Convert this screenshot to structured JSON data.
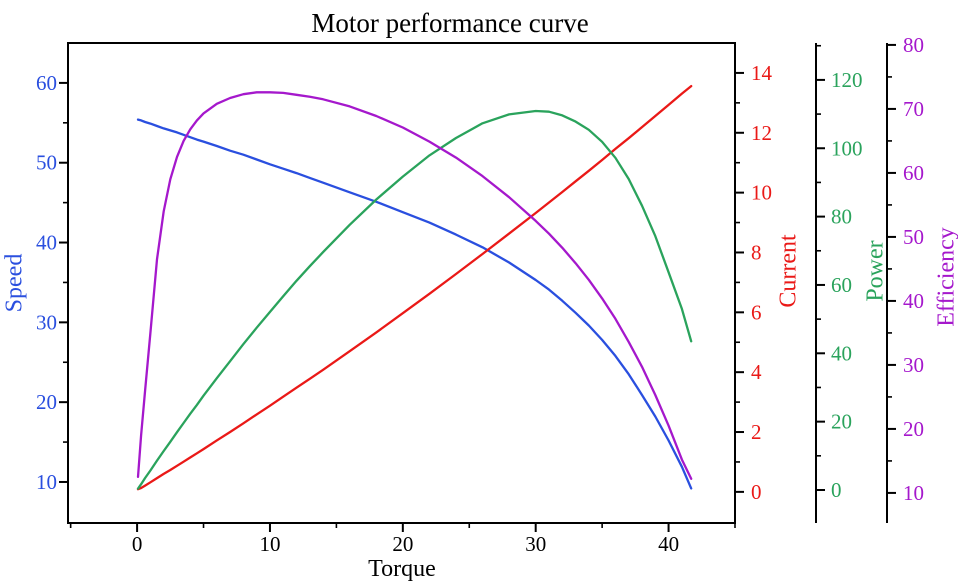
{
  "title": "Motor performance curve",
  "chart_data": {
    "type": "line",
    "title": "Motor performance curve",
    "xlabel": "Torque",
    "xlim": [
      -5.2,
      45.0
    ],
    "x_ticks": [
      0,
      10,
      20,
      30,
      40
    ],
    "x_minor_step": 5,
    "grid": false,
    "legend_position": "none",
    "x": [
      0.07,
      0.3,
      0.6,
      1,
      1.5,
      2,
      2.5,
      3,
      3.5,
      4,
      4.5,
      5,
      6,
      7,
      8,
      9,
      10,
      11,
      12,
      13,
      14,
      16,
      18,
      20,
      22,
      24,
      26,
      28,
      30,
      31,
      32,
      33,
      34,
      35,
      36,
      37,
      38,
      39,
      40,
      41,
      41.7
    ],
    "series": [
      {
        "name": "Speed",
        "axis": "speed",
        "values": [
          55.4,
          55.3,
          55.1,
          54.9,
          54.6,
          54.3,
          54.05,
          53.8,
          53.5,
          53.2,
          52.9,
          52.65,
          52.1,
          51.5,
          51.0,
          50.4,
          49.8,
          49.25,
          48.7,
          48.1,
          47.5,
          46.3,
          45.1,
          43.8,
          42.5,
          41.0,
          39.4,
          37.5,
          35.3,
          34.1,
          32.7,
          31.2,
          29.6,
          27.8,
          25.8,
          23.5,
          20.9,
          18.2,
          15.2,
          11.9,
          9.2
        ]
      },
      {
        "name": "Current",
        "axis": "current",
        "values": [
          0.09,
          0.13,
          0.21,
          0.32,
          0.46,
          0.6,
          0.73,
          0.87,
          1.01,
          1.15,
          1.29,
          1.43,
          1.72,
          2.0,
          2.29,
          2.59,
          2.88,
          3.18,
          3.48,
          3.78,
          4.08,
          4.7,
          5.33,
          5.97,
          6.62,
          7.28,
          7.95,
          8.63,
          9.32,
          9.67,
          10.02,
          10.38,
          10.73,
          11.09,
          11.46,
          11.82,
          12.19,
          12.56,
          12.93,
          13.31,
          13.56
        ]
      },
      {
        "name": "Power",
        "axis": "power",
        "values": [
          0.4,
          1.7,
          3.5,
          5.7,
          8.6,
          11.4,
          14.1,
          16.9,
          19.6,
          22.3,
          24.9,
          27.6,
          32.7,
          37.7,
          42.7,
          47.5,
          52.1,
          56.7,
          61.2,
          65.5,
          69.6,
          77.6,
          85.0,
          91.7,
          97.9,
          103.0,
          107.3,
          109.9,
          110.9,
          110.7,
          109.6,
          107.8,
          105.4,
          101.9,
          97.2,
          91.0,
          83.2,
          74.3,
          63.7,
          53.0,
          43.5
        ]
      },
      {
        "name": "Efficiency",
        "axis": "efficiency",
        "values": [
          12.5,
          19,
          26,
          35,
          46.5,
          54,
          59,
          62.5,
          65,
          66.8,
          68.2,
          69.3,
          70.8,
          71.7,
          72.3,
          72.6,
          72.6,
          72.5,
          72.2,
          71.9,
          71.5,
          70.4,
          68.9,
          67.1,
          64.9,
          62.4,
          59.5,
          56.2,
          52.5,
          50.5,
          48.3,
          45.9,
          43.3,
          40.4,
          37.2,
          33.6,
          29.7,
          25.3,
          20.5,
          15.2,
          12.2
        ]
      }
    ],
    "axes": {
      "speed": {
        "label": "Speed",
        "side": "left",
        "color": "#2a4fdf",
        "lim": [
          4.86,
          65.0
        ],
        "ticks": [
          10,
          20,
          30,
          40,
          50,
          60
        ],
        "minor_step": 5
      },
      "current": {
        "label": "Current",
        "side": "right",
        "color": "#ea1917",
        "lim": [
          -1.04,
          15.0
        ],
        "ticks": [
          0,
          2,
          4,
          6,
          8,
          10,
          12,
          14
        ],
        "minor_step": 1
      },
      "power": {
        "label": "Power",
        "side": "detached-1",
        "color": "#2aa35c",
        "lim": [
          -9.66,
          130.8
        ],
        "ticks": [
          0,
          20,
          40,
          60,
          80,
          100,
          120
        ],
        "minor_step": 10
      },
      "efficiency": {
        "label": "Efficiency",
        "side": "detached-2",
        "color": "#a518cc",
        "lim": [
          5.3,
          80.3
        ],
        "ticks": [
          10,
          20,
          30,
          40,
          50,
          60,
          70,
          80
        ],
        "minor_step": 5
      }
    },
    "x_axis_color": "#000000"
  }
}
